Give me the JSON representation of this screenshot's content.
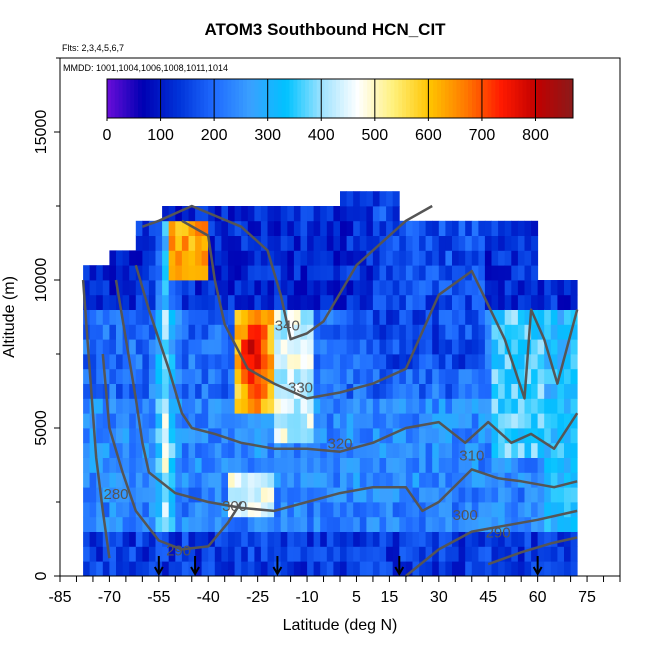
{
  "title": "ATOM3 Southbound HCN_CIT",
  "flights_note": "Flts: 2,3,4,5,6,7",
  "dates_note": "MMDD: 1001,1004,1006,1008,1011,1014",
  "colors": {
    "scale": [
      "#6a0dd9",
      "#0000b3",
      "#0033d9",
      "#1f6bff",
      "#3aa0ff",
      "#00c2ff",
      "#9fe3ff",
      "#ffffff",
      "#fff07a",
      "#ffc400",
      "#ff7a00",
      "#ff1a00",
      "#c00000",
      "#8b1a1a"
    ],
    "contour": "#555555"
  },
  "chart_data": {
    "type": "heatmap",
    "title": "ATOM3 Southbound HCN_CIT",
    "xlabel": "Latitude (deg N)",
    "ylabel": "Altitude (m)",
    "xlim": [
      -85,
      85
    ],
    "ylim": [
      0,
      17500
    ],
    "x_ticks": [
      -85,
      -70,
      -55,
      -40,
      -25,
      -10,
      5,
      15,
      30,
      45,
      60,
      75
    ],
    "y_ticks": [
      0,
      5000,
      10000,
      15000
    ],
    "colorbar": {
      "ticks": [
        0,
        100,
        200,
        300,
        400,
        500,
        600,
        700,
        800
      ],
      "range": [
        0,
        870
      ]
    },
    "contour_labels": [
      {
        "text": "340",
        "lat": -16,
        "alt": 8300
      },
      {
        "text": "330",
        "lat": -12,
        "alt": 6200
      },
      {
        "text": "320",
        "lat": 0,
        "alt": 4300
      },
      {
        "text": "310",
        "lat": 40,
        "alt": 3900
      },
      {
        "text": "300",
        "lat": -32,
        "alt": 2200
      },
      {
        "text": "300",
        "lat": 38,
        "alt": 1900
      },
      {
        "text": "290",
        "lat": -49,
        "alt": 700
      },
      {
        "text": "290",
        "lat": 48,
        "alt": 1300
      },
      {
        "text": "280",
        "lat": -68,
        "alt": 2600
      }
    ],
    "flight_markers_lat": [
      -55,
      -44,
      -19,
      18,
      60
    ]
  }
}
